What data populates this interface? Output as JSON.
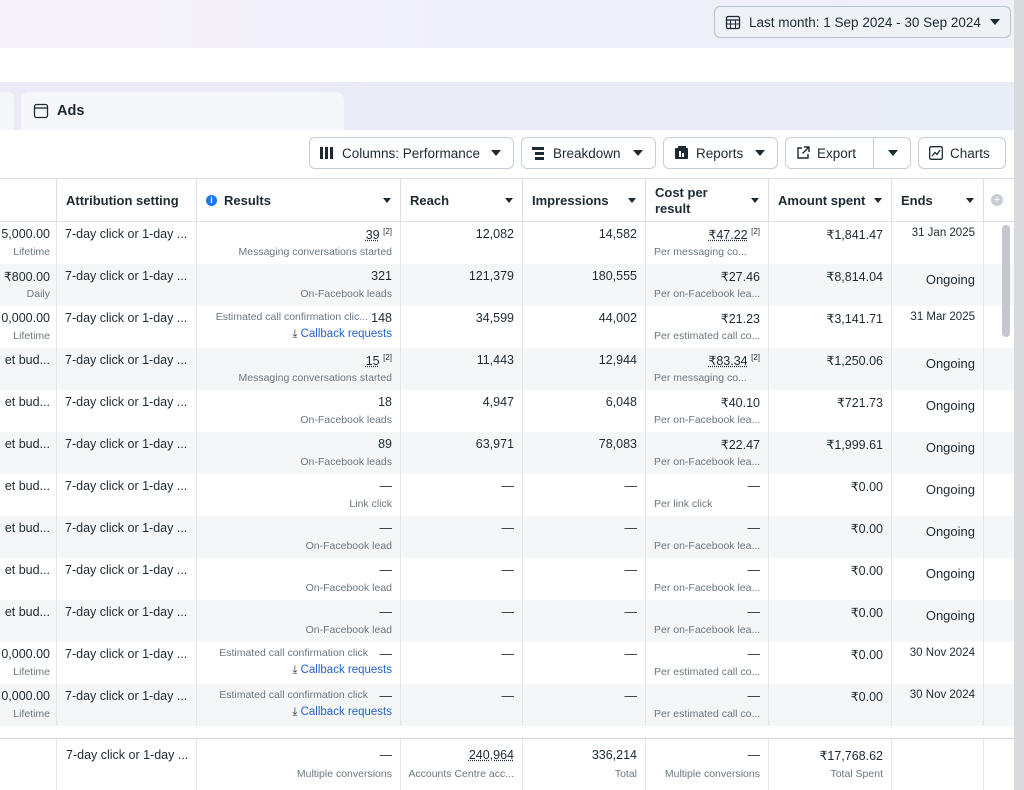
{
  "date_range": {
    "label": "Last month: 1 Sep 2024 - 30 Sep 2024",
    "icon": "calendar-icon"
  },
  "tab": {
    "label": "Ads",
    "icon": "ads-window-icon"
  },
  "toolbar": {
    "columns": "Columns: Performance",
    "breakdown": "Breakdown",
    "reports": "Reports",
    "export": "Export",
    "charts": "Charts"
  },
  "headers": {
    "attribution": "Attribution setting",
    "results": "Results",
    "reach": "Reach",
    "impressions": "Impressions",
    "cost_per_result": [
      "Cost per",
      "result"
    ],
    "amount_spent": "Amount spent",
    "ends": "Ends"
  },
  "rows": [
    {
      "budget": "5,000.00",
      "budget_sub": "Lifetime",
      "attr": "7-day click or 1-day ...",
      "results": "39",
      "results_sup": "[2]",
      "results_sub": "Messaging conversations started",
      "reach": "12,082",
      "impr": "14,582",
      "cpr": "₹47.22",
      "cpr_sup": "[2]",
      "cpr_sub": "Per messaging co...",
      "spent": "₹1,841.47",
      "ends": "31 Jan 2025"
    },
    {
      "budget": "₹800.00",
      "budget_sub": "Daily",
      "attr": "7-day click or 1-day ...",
      "results": "321",
      "results_sup": "",
      "results_sub": "On-Facebook leads",
      "reach": "121,379",
      "impr": "180,555",
      "cpr": "₹27.46",
      "cpr_sup": "",
      "cpr_sub": "Per on-Facebook lea...",
      "spent": "₹8,814.04",
      "ends": "Ongoing"
    },
    {
      "budget": "0,000.00",
      "budget_sub": "Lifetime",
      "attr": "7-day click or 1-day ...",
      "results_pre": "Estimated call confirmation clic...",
      "results": "148",
      "results_sup": "",
      "results_link": "Callback requests",
      "reach": "34,599",
      "impr": "44,002",
      "cpr": "₹21.23",
      "cpr_sup": "",
      "cpr_sub": "Per estimated call co...",
      "spent": "₹3,141.71",
      "ends": "31 Mar 2025"
    },
    {
      "budget": "et bud...",
      "budget_sub": "",
      "attr": "7-day click or 1-day ...",
      "results": "15",
      "results_sup": "[2]",
      "results_sub": "Messaging conversations started",
      "reach": "11,443",
      "impr": "12,944",
      "cpr": "₹83.34",
      "cpr_sup": "[2]",
      "cpr_sub": "Per messaging co...",
      "spent": "₹1,250.06",
      "ends": "Ongoing"
    },
    {
      "budget": "et bud...",
      "budget_sub": "",
      "attr": "7-day click or 1-day ...",
      "results": "18",
      "results_sup": "",
      "results_sub": "On-Facebook leads",
      "reach": "4,947",
      "impr": "6,048",
      "cpr": "₹40.10",
      "cpr_sup": "",
      "cpr_sub": "Per on-Facebook lea...",
      "spent": "₹721.73",
      "ends": "Ongoing"
    },
    {
      "budget": "et bud...",
      "budget_sub": "",
      "attr": "7-day click or 1-day ...",
      "results": "89",
      "results_sup": "",
      "results_sub": "On-Facebook leads",
      "reach": "63,971",
      "impr": "78,083",
      "cpr": "₹22.47",
      "cpr_sup": "",
      "cpr_sub": "Per on-Facebook lea...",
      "spent": "₹1,999.61",
      "ends": "Ongoing"
    },
    {
      "budget": "et bud...",
      "budget_sub": "",
      "attr": "7-day click or 1-day ...",
      "results": "—",
      "results_sup": "",
      "results_sub": "Link click",
      "reach": "—",
      "impr": "—",
      "cpr": "—",
      "cpr_sup": "",
      "cpr_sub": "Per link click",
      "spent": "₹0.00",
      "ends": "Ongoing"
    },
    {
      "budget": "et bud...",
      "budget_sub": "",
      "attr": "7-day click or 1-day ...",
      "results": "—",
      "results_sup": "",
      "results_sub": "On-Facebook lead",
      "reach": "—",
      "impr": "—",
      "cpr": "—",
      "cpr_sup": "",
      "cpr_sub": "Per on-Facebook lea...",
      "spent": "₹0.00",
      "ends": "Ongoing"
    },
    {
      "budget": "et bud...",
      "budget_sub": "",
      "attr": "7-day click or 1-day ...",
      "results": "—",
      "results_sup": "",
      "results_sub": "On-Facebook lead",
      "reach": "—",
      "impr": "—",
      "cpr": "—",
      "cpr_sup": "",
      "cpr_sub": "Per on-Facebook lea...",
      "spent": "₹0.00",
      "ends": "Ongoing"
    },
    {
      "budget": "et bud...",
      "budget_sub": "",
      "attr": "7-day click or 1-day ...",
      "results": "—",
      "results_sup": "",
      "results_sub": "On-Facebook lead",
      "reach": "—",
      "impr": "—",
      "cpr": "—",
      "cpr_sup": "",
      "cpr_sub": "Per on-Facebook lea...",
      "spent": "₹0.00",
      "ends": "Ongoing"
    },
    {
      "budget": "0,000.00",
      "budget_sub": "Lifetime",
      "attr": "7-day click or 1-day ...",
      "results_pre": "Estimated call confirmation click",
      "results": "—",
      "results_sup": "",
      "results_link": "Callback requests",
      "reach": "—",
      "impr": "—",
      "cpr": "—",
      "cpr_sup": "",
      "cpr_sub": "Per estimated call co...",
      "spent": "₹0.00",
      "ends": "30 Nov 2024"
    },
    {
      "budget": "0,000.00",
      "budget_sub": "Lifetime",
      "attr": "7-day click or 1-day ...",
      "results_pre": "Estimated call confirmation click",
      "results": "—",
      "results_sup": "",
      "results_link": "Callback requests",
      "reach": "—",
      "impr": "—",
      "cpr": "—",
      "cpr_sup": "",
      "cpr_sub": "Per estimated call co...",
      "spent": "₹0.00",
      "ends": "30 Nov 2024"
    }
  ],
  "footer": {
    "attr": "7-day click or 1-day ...",
    "results": "—",
    "results_sub": "Multiple conversions",
    "reach": "240,964",
    "reach_sub": "Accounts Centre acc...",
    "impr": "336,214",
    "impr_sub": "Total",
    "cpr": "—",
    "cpr_sub": "Multiple conversions",
    "spent": "₹17,768.62",
    "spent_sub": "Total Spent"
  }
}
